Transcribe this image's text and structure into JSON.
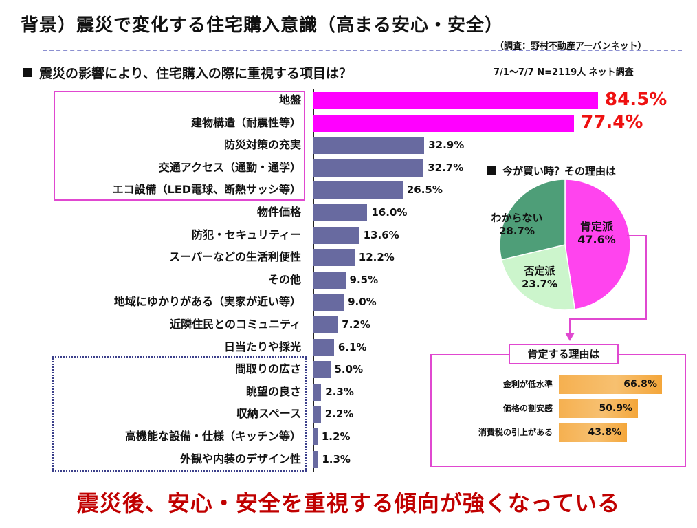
{
  "title": "背景）震災で変化する住宅購入意識（高まる安心・安全）",
  "source": "（調査：野村不動産アーバンネット）",
  "section1_title": "震災の影響により、住宅購入の際に重視する項目は？",
  "survey_info": "7/1～7/7 N=2119人 ネット調査",
  "section2_title": "今が買い時？その理由は",
  "reasons_title": "肯定する理由は",
  "conclusion": "震災後、安心・安全を重視する傾向が強くなっている",
  "colors": {
    "highlight": "#ff00ff",
    "default_bar": "#686aa0",
    "big_value": "#ee1111",
    "frame_pink": "#e048d0",
    "conclusion": "#c00000",
    "reason_bar": "#f4a63a"
  },
  "chart_data": [
    {
      "type": "bar",
      "orientation": "horizontal",
      "title": "震災の影響により、住宅購入の際に重視する項目は？",
      "categories": [
        "地盤",
        "建物構造（耐震性等）",
        "防災対策の充実",
        "交通アクセス（通勤・通学）",
        "エコ設備（LED電球、断熱サッシ等）",
        "物件価格",
        "防犯・セキュリティー",
        "スーパーなどの生活利便性",
        "その他",
        "地域にゆかりがある（実家が近い等）",
        "近隣住民とのコミュニティ",
        "日当たりや採光",
        "間取りの広さ",
        "眺望の良さ",
        "収納スペース",
        "高機能な設備・仕様（キッチン等）",
        "外観や内装のデザイン性"
      ],
      "values": [
        84.5,
        77.4,
        32.9,
        32.7,
        26.5,
        16.0,
        13.6,
        12.2,
        9.5,
        9.0,
        7.2,
        6.1,
        5.0,
        2.3,
        2.2,
        1.2,
        1.3
      ],
      "value_labels": [
        "84.5%",
        "77.4%",
        "32.9%",
        "32.7%",
        "26.5%",
        "16.0%",
        "13.6%",
        "12.2%",
        "9.5%",
        "9.0%",
        "7.2%",
        "6.1%",
        "5.0%",
        "2.3%",
        "2.2%",
        "1.2%",
        "1.3%"
      ],
      "highlighted": [
        0,
        1
      ],
      "xlim": [
        0,
        100
      ]
    },
    {
      "type": "pie",
      "title": "今が買い時？その理由は",
      "labels": [
        "肯定派",
        "否定派",
        "わからない"
      ],
      "values": [
        47.6,
        23.7,
        28.7
      ],
      "value_labels": [
        "47.6%",
        "23.7%",
        "28.7%"
      ],
      "colors": [
        "#ff44ee",
        "#ccf5cc",
        "#4e9e78"
      ]
    },
    {
      "type": "bar",
      "orientation": "horizontal",
      "title": "肯定する理由は",
      "categories": [
        "金利が低水準",
        "価格の割安感",
        "消費税の引上がある"
      ],
      "values": [
        66.8,
        50.9,
        43.8
      ],
      "value_labels": [
        "66.8%",
        "50.9%",
        "43.8%"
      ],
      "xlim": [
        0,
        100
      ]
    }
  ]
}
